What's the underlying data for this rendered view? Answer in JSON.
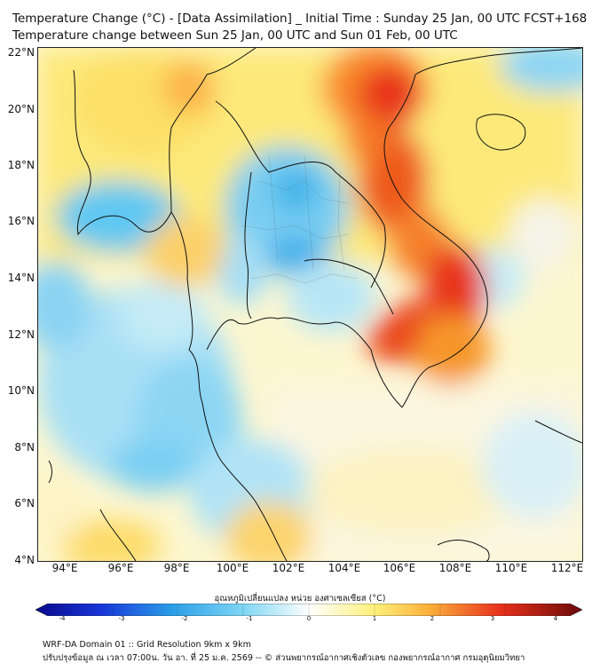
{
  "header": {
    "title_line1": "Temperature Change (°C) - [Data Assimilation] _ Initial Time : Sunday 25 Jan, 00 UTC FCST+168",
    "title_line2": "Temperature change between Sun 25 Jan, 00 UTC and Sun 01 Feb, 00 UTC"
  },
  "map": {
    "lat_labels": [
      "22°N",
      "20°N",
      "18°N",
      "16°N",
      "14°N",
      "12°N",
      "10°N",
      "8°N",
      "6°N",
      "4°N"
    ],
    "lon_labels": [
      "94°E",
      "96°E",
      "98°E",
      "100°E",
      "102°E",
      "104°E",
      "106°E",
      "108°E",
      "110°E",
      "112°E"
    ]
  },
  "colorbar": {
    "title": "อุณหภูมิเปลี่ยนแปลง หน่วย องศาเซลเซียส (°C)",
    "min": -4,
    "max": 4,
    "ticks": [
      "-4",
      "-3",
      "-2",
      "-1",
      "0",
      "1",
      "2",
      "3",
      "4"
    ]
  },
  "footer": {
    "line1": "WRF-DA Domain 01 :: Grid Resolution 9km x 9km",
    "line2": "ปรับปรุงข้อมูล ณ เวลา 07:00น. วัน อา. ที่ 25 ม.ค. 2569 -- © ส่วนพยากรณ์อากาศเชิงตัวเลข กองพยากรณ์อากาศ กรมอุตุนิยมวิทยา"
  },
  "colors": {
    "dark_blue": "#0a0a8c",
    "cyan": "#4fc3f7",
    "white": "#ffffff",
    "yellow": "#fdf07a",
    "orange": "#fbb03b",
    "red": "#e8301c",
    "dark_red": "#6a0a0a"
  }
}
